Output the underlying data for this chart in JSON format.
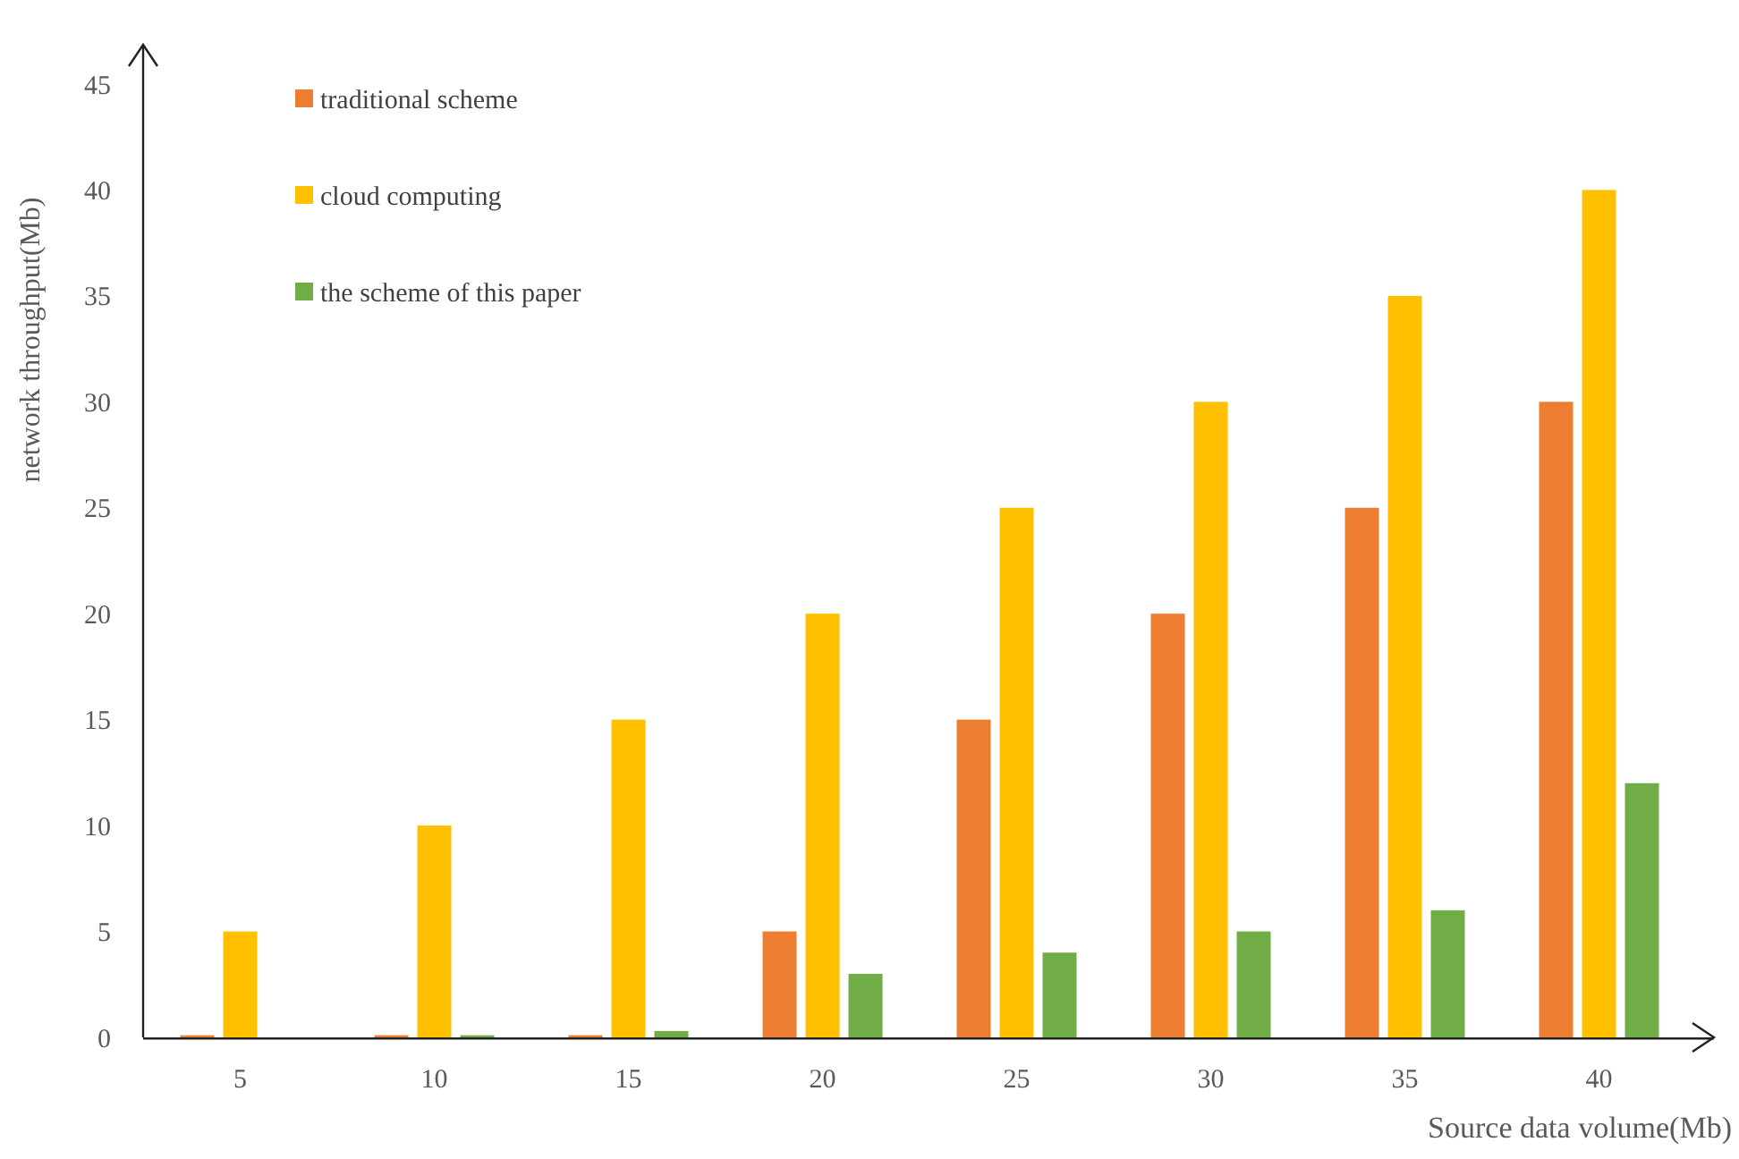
{
  "chart_data": {
    "type": "bar",
    "xlabel": "Source data volume(Mb)",
    "ylabel": "network throughput(Mb)",
    "categories": [
      "5",
      "10",
      "15",
      "20",
      "25",
      "30",
      "35",
      "40"
    ],
    "series": [
      {
        "name": "traditional scheme",
        "color": "#ed7d31",
        "values": [
          0.1,
          0.1,
          0.1,
          5,
          15,
          20,
          25,
          30
        ]
      },
      {
        "name": "cloud computing",
        "color": "#ffc000",
        "values": [
          5,
          10,
          15,
          20,
          25,
          30,
          35,
          40
        ]
      },
      {
        "name": "the scheme of this paper",
        "color": "#70ad47",
        "values": [
          0,
          0.1,
          0.3,
          3,
          4,
          5,
          6,
          12
        ]
      }
    ],
    "ylim": [
      0,
      45
    ],
    "yticks": [
      0,
      5,
      10,
      15,
      20,
      25,
      30,
      35,
      40,
      45
    ],
    "grid": false,
    "legend": "top left"
  }
}
